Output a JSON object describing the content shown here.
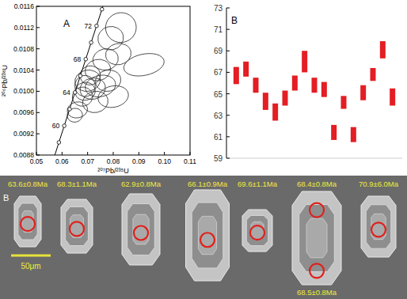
{
  "chart_data": [
    {
      "type": "concordia",
      "title": "A",
      "x_label": "²⁰⁷Pb/²³⁵U",
      "y_label": "²⁰⁶Pb/²³⁸U",
      "xlim": [
        0.05,
        0.11
      ],
      "xticks": [
        0.05,
        0.06,
        0.07,
        0.08,
        0.09,
        {
          "value": 0.1,
          "label": "0.10"
        },
        0.11
      ],
      "ylim": [
        0.0088,
        0.0116
      ],
      "yticks": [
        0.0088,
        0.0092,
        0.0096,
        {
          "value": 0.01,
          "label": "0.0100"
        },
        0.0104,
        0.0108,
        0.0112,
        0.0116
      ],
      "concordia": {
        "x": [
          0.0567,
          0.05878,
          0.06087,
          0.06296,
          0.06506,
          0.06716,
          0.06926,
          0.07137,
          0.07348,
          0.0756,
          0.07772
        ],
        "y": [
          0.008725,
          0.009038,
          0.009351,
          0.009664,
          0.009978,
          0.010291,
          0.010605,
          0.010918,
          0.011232,
          0.011545,
          0.01186
        ],
        "labels": [
          null,
          null,
          "60",
          null,
          "64",
          null,
          "68",
          null,
          "72",
          null,
          null
        ]
      },
      "series": [
        {
          "color": "#333333",
          "marker": "ellipse",
          "x": [
            0.065,
            0.066,
            0.069,
            0.07,
            0.071,
            0.072,
            0.074,
            0.075,
            0.077,
            0.078,
            0.08,
            0.082,
            0.079,
            0.083,
            0.092,
            0.068,
            0.073,
            0.069
          ],
          "values": [
            0.00955,
            0.00965,
            0.0101,
            0.0102,
            0.0103,
            0.01005,
            0.0104,
            0.0101,
            0.0106,
            0.0102,
            0.0099,
            0.0107,
            0.011,
            0.0112,
            0.0105,
            0.0099,
            0.0098,
            0.01
          ],
          "x_error": [
            0.003,
            0.004,
            0.004,
            0.005,
            0.004,
            0.005,
            0.005,
            0.006,
            0.005,
            0.005,
            0.006,
            0.005,
            0.005,
            0.006,
            0.008,
            0.004,
            0.005,
            0.004
          ],
          "y_error": [
            0.00013,
            0.00015,
            0.0002,
            0.0002,
            0.00018,
            0.0002,
            0.0002,
            0.0002,
            0.0002,
            0.0002,
            0.0002,
            0.0002,
            0.00022,
            0.00028,
            0.0002,
            0.00018,
            0.0002,
            0.00017
          ]
        }
      ]
    },
    {
      "type": "error_bar",
      "title": "B",
      "tick_labels": "y",
      "color": "#e31e24",
      "x": [
        1,
        2,
        3,
        4,
        5,
        6,
        7,
        8,
        9,
        10,
        11,
        12,
        13,
        14,
        15,
        16,
        17
      ],
      "xlim": [
        0,
        18
      ],
      "ylim": [
        59,
        73
      ],
      "yticks": [
        59,
        61,
        63,
        65,
        67,
        69,
        71,
        73
      ],
      "values": [
        66.7,
        67.3,
        65.8,
        64.3,
        63.3,
        64.6,
        66.0,
        68.0,
        65.8,
        65.4,
        61.4,
        64.2,
        61.2,
        65.1,
        66.8,
        69.1,
        64.7
      ],
      "errors": [
        0.8,
        0.7,
        0.7,
        0.8,
        0.8,
        0.7,
        0.7,
        1.0,
        0.7,
        0.7,
        0.7,
        0.6,
        0.7,
        0.7,
        0.6,
        0.8,
        0.8
      ]
    }
  ],
  "zircon_panel": {
    "label": "B",
    "scale_bar": "50μm",
    "grains": [
      {
        "labels": [
          "63.6±0.8Ma"
        ]
      },
      {
        "labels": [
          "68.3±1.1Ma"
        ]
      },
      {
        "labels": [
          "62.9±0.8Ma"
        ]
      },
      {
        "labels": [
          "66.1±0.9Ma"
        ]
      },
      {
        "labels": [
          "69.6±1.1Ma"
        ]
      },
      {
        "labels": [
          "68.4±0.8Ma",
          "68.5±0.8Ma"
        ]
      },
      {
        "labels": [
          "70.9±6.0Ma"
        ]
      }
    ]
  }
}
